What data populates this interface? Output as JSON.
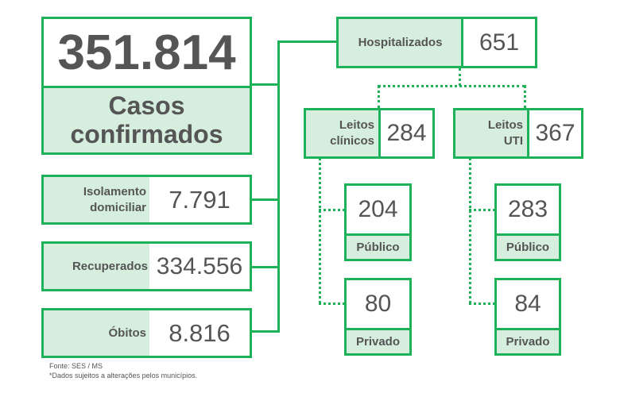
{
  "summary": {
    "total": "351.814",
    "total_label_line1": "Casos",
    "total_label_line2": "confirmados"
  },
  "isolamento": {
    "label_line1": "Isolamento",
    "label_line2": "domiciliar",
    "value": "7.791"
  },
  "recuperados": {
    "label": "Recuperados",
    "value": "334.556"
  },
  "obitos": {
    "label": "Óbitos",
    "value": "8.816"
  },
  "hospitalizados": {
    "label": "Hospitalizados",
    "value": "651"
  },
  "leitos_clinicos": {
    "label_line1": "Leitos",
    "label_line2": "clínicos",
    "value": "284",
    "publico": {
      "value": "204",
      "label": "Público"
    },
    "privado": {
      "value": "80",
      "label": "Privado"
    }
  },
  "leitos_uti": {
    "label_line1": "Leitos",
    "label_line2": "UTI",
    "value": "367",
    "publico": {
      "value": "283",
      "label": "Público"
    },
    "privado": {
      "value": "84",
      "label": "Privado"
    }
  },
  "footer": {
    "source": "Fonte: SES / MS",
    "note": "*Dados sujeitos a alterações pelos municípios."
  }
}
